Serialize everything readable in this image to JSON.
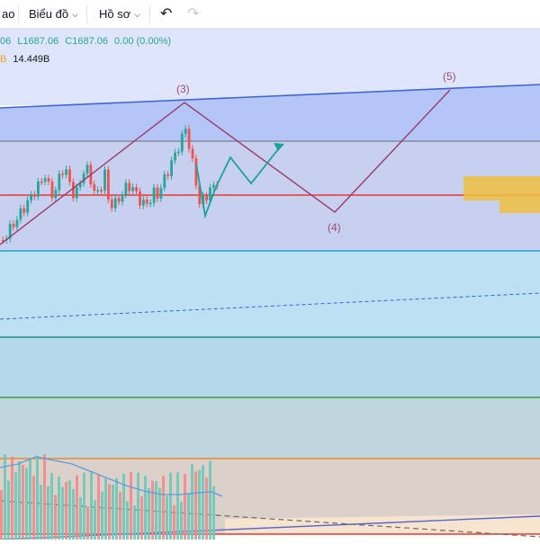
{
  "toolbar": {
    "truncated_item": "ao",
    "chart_menu": "Biểu đồ",
    "profile_menu": "Hồ sơ",
    "undo_icon": "undo-icon",
    "redo_icon": "redo-icon"
  },
  "legend": {
    "open_tail": "06",
    "low": "L1687.06",
    "close": "C1687.06",
    "change": "0.00 (0.00%)",
    "volume_tag": "B",
    "volume_value": "14.449B"
  },
  "wave_labels": {
    "w3": "(3)",
    "w4": "(4)",
    "w5": "(5)"
  },
  "colors": {
    "up": "#26a69a",
    "down": "#ef5350",
    "wave": "#9c3a70",
    "projection": "#1aa39a",
    "red_level": "#e53935",
    "supply_zone": "#f0c040"
  }
}
